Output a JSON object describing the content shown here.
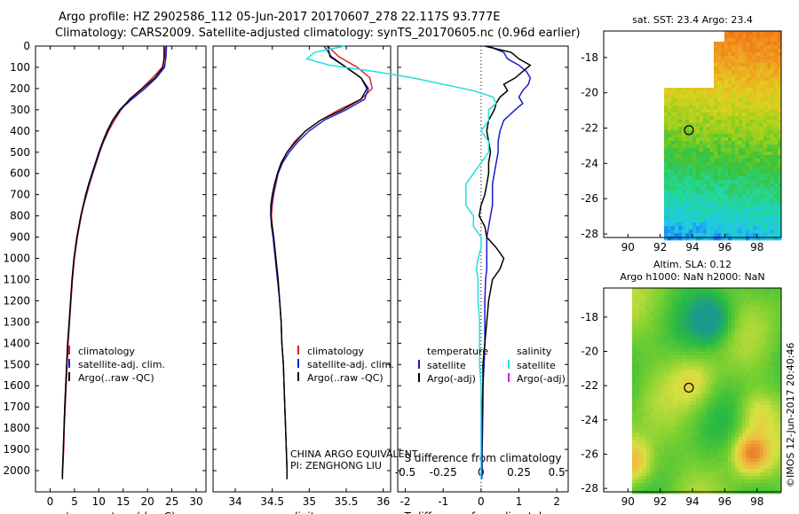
{
  "header": {
    "line1": "Argo profile: HZ 2902586_112 05-Jun-2017 20170607_278 22.117S 93.777E",
    "line2": "Climatology: CARS2009. Satellite-adjusted climatology: synTS_20170605.nc (0.96d earlier)"
  },
  "colors": {
    "climatology": "#d42020",
    "satellite": "#1a1ad0",
    "argo": "#000000",
    "salinity_satellite": "#20e0e0",
    "salinity_argo": "#d020d0"
  },
  "chart_data": [
    {
      "type": "line",
      "panel": "temperature",
      "xlabel": "temperature (deg C)",
      "ylabel": "",
      "xlim": [
        -3,
        32
      ],
      "ylim": [
        2100,
        0
      ],
      "xticks": [
        0,
        5,
        10,
        15,
        20,
        25,
        30
      ],
      "yticks": [
        0,
        100,
        200,
        300,
        400,
        500,
        600,
        700,
        800,
        900,
        1000,
        1100,
        1200,
        1300,
        1400,
        1500,
        1600,
        1700,
        1800,
        1900,
        2000
      ],
      "legend_position": "lower-left",
      "depth": [
        0,
        50,
        100,
        150,
        200,
        250,
        300,
        350,
        400,
        450,
        500,
        550,
        600,
        650,
        700,
        750,
        800,
        850,
        900,
        1000,
        1100,
        1200,
        1300,
        1400,
        1500,
        1600,
        1700,
        1800,
        1900,
        2000,
        2040
      ],
      "series": [
        {
          "name": "climatology",
          "color_key": "climatology",
          "values": [
            23.7,
            23.6,
            23.0,
            21.0,
            18.8,
            16.3,
            14.6,
            13.2,
            12.0,
            11.0,
            10.2,
            9.5,
            8.8,
            8.1,
            7.5,
            6.9,
            6.4,
            6.0,
            5.6,
            5.0,
            4.6,
            4.3,
            4.0,
            3.7,
            3.5,
            3.3,
            3.1,
            2.9,
            2.8,
            2.6,
            2.55
          ]
        },
        {
          "name": "satellite-adj. clim.",
          "color_key": "satellite",
          "values": [
            23.9,
            23.8,
            23.5,
            21.8,
            19.5,
            16.8,
            14.4,
            12.9,
            11.8,
            10.9,
            10.1,
            9.4,
            8.7,
            8.0,
            7.4,
            6.8,
            6.3,
            5.9,
            5.5,
            4.9,
            4.5,
            4.2,
            3.9,
            3.6,
            3.4,
            3.2,
            3.0,
            2.85,
            2.7,
            2.55,
            2.5
          ]
        },
        {
          "name": "Argo(..raw -QC)",
          "color_key": "argo",
          "values": [
            23.4,
            23.4,
            23.2,
            21.5,
            19.0,
            16.4,
            14.3,
            12.8,
            11.7,
            10.8,
            10.0,
            9.3,
            8.6,
            7.9,
            7.3,
            6.8,
            6.3,
            5.9,
            5.5,
            4.9,
            4.5,
            4.2,
            3.9,
            3.6,
            3.4,
            3.2,
            3.0,
            2.85,
            2.7,
            2.55,
            2.5
          ]
        }
      ]
    },
    {
      "type": "line",
      "panel": "salinity",
      "xlabel": "salinity",
      "ylabel": "",
      "xlim": [
        33.7,
        36.1
      ],
      "ylim": [
        2100,
        0
      ],
      "xticks": [
        34,
        34.5,
        35,
        35.5,
        36
      ],
      "legend_position": "lower-left",
      "depth": [
        0,
        50,
        100,
        150,
        200,
        250,
        300,
        350,
        400,
        450,
        500,
        550,
        600,
        650,
        700,
        750,
        800,
        850,
        900,
        1000,
        1100,
        1200,
        1300,
        1400,
        1500,
        1600,
        1700,
        1800,
        1900,
        2000,
        2040
      ],
      "series": [
        {
          "name": "climatology",
          "color_key": "climatology",
          "values": [
            35.25,
            35.4,
            35.65,
            35.82,
            35.85,
            35.7,
            35.4,
            35.15,
            34.95,
            34.8,
            34.7,
            34.63,
            34.58,
            34.55,
            34.52,
            34.5,
            34.49,
            34.5,
            34.52,
            34.55,
            34.58,
            34.6,
            34.62,
            34.63,
            34.65,
            34.66,
            34.67,
            34.68,
            34.69,
            34.7,
            34.7
          ]
        },
        {
          "name": "satellite-adj. clim.",
          "color_key": "satellite",
          "values": [
            35.2,
            35.3,
            35.5,
            35.7,
            35.8,
            35.75,
            35.5,
            35.2,
            35.0,
            34.85,
            34.73,
            34.64,
            34.58,
            34.54,
            34.51,
            34.49,
            34.48,
            34.49,
            34.51,
            34.54,
            34.57,
            34.6,
            34.62,
            34.63,
            34.65,
            34.66,
            34.67,
            34.68,
            34.69,
            34.7,
            34.7
          ]
        },
        {
          "name": "Argo(..raw -QC)",
          "color_key": "argo",
          "values": [
            35.25,
            35.28,
            35.5,
            35.7,
            35.78,
            35.7,
            35.45,
            35.15,
            34.95,
            34.82,
            34.7,
            34.62,
            34.57,
            34.53,
            34.5,
            34.48,
            34.48,
            34.5,
            34.52,
            34.55,
            34.58,
            34.6,
            34.62,
            34.63,
            34.65,
            34.66,
            34.67,
            34.68,
            34.69,
            34.7,
            34.7
          ]
        }
      ],
      "annotation": {
        "line1": "CHINA ARGO EQUIVALENT",
        "line2": "PI: ZENGHONG LIU"
      }
    },
    {
      "type": "line",
      "panel": "difference",
      "xlabel": "T difference from climatology",
      "xlabel_top": "S difference from climatology",
      "xlim": [
        -2.2,
        2.3
      ],
      "ylim": [
        2100,
        0
      ],
      "xticks": [
        -2,
        -1,
        0,
        1,
        2
      ],
      "xtick_labels": [
        "-2",
        "-1",
        "0",
        "1",
        "2"
      ],
      "sticks": [
        -0.5,
        -0.25,
        0,
        0.25,
        0.5
      ],
      "stick_labels": [
        "-0.5",
        "-0.25",
        "0",
        "0.25",
        "0.5"
      ],
      "legend_position": "lower-center",
      "legend_titles": {
        "temperature": "temperature",
        "salinity": "salinity"
      },
      "depth": [
        0,
        30,
        60,
        90,
        120,
        150,
        180,
        210,
        240,
        270,
        300,
        350,
        400,
        450,
        500,
        550,
        600,
        650,
        700,
        750,
        800,
        850,
        900,
        950,
        1000,
        1050,
        1100,
        1200,
        1300,
        1400,
        1500,
        1600,
        1700,
        1800,
        1900,
        2000,
        2040
      ],
      "series": [
        {
          "name": "satellite",
          "group": "temperature",
          "color_key": "satellite",
          "values": [
            0.2,
            0.6,
            0.7,
            1.0,
            1.2,
            1.3,
            1.25,
            1.1,
            1.0,
            1.1,
            0.9,
            0.6,
            0.5,
            0.45,
            0.45,
            0.4,
            0.35,
            0.3,
            0.3,
            0.3,
            0.25,
            0.2,
            0.15,
            0.15,
            0.15,
            0.15,
            0.12,
            0.1,
            0.1,
            0.1,
            0.08,
            0.05,
            0.05,
            0.04,
            0.03,
            0.03,
            0.02
          ]
        },
        {
          "name": "Argo(-adj)",
          "group": "temperature",
          "color_key": "argo",
          "values": [
            0.1,
            0.8,
            1.0,
            1.3,
            1.1,
            0.9,
            0.6,
            0.7,
            0.5,
            0.4,
            0.35,
            0.2,
            0.15,
            0.2,
            0.25,
            0.2,
            0.2,
            0.15,
            0.1,
            0.0,
            -0.05,
            0.1,
            0.15,
            0.4,
            0.6,
            0.5,
            0.3,
            0.2,
            0.15,
            0.1,
            0.05,
            0.05,
            0.03,
            0.02,
            0.02,
            0.01,
            0.01
          ]
        },
        {
          "name": "satellite",
          "group": "salinity",
          "color_key": "salinity_satellite",
          "values": [
            -0.9,
            -1.1,
            -1.15,
            -1.0,
            -0.7,
            -0.45,
            -0.25,
            -0.05,
            0.08,
            0.1,
            0.05,
            0.05,
            0.0,
            0.05,
            0.05,
            0.0,
            -0.05,
            -0.1,
            -0.1,
            -0.1,
            -0.05,
            -0.05,
            0.0,
            0.0,
            -0.02,
            -0.03,
            -0.02,
            -0.02,
            -0.01,
            -0.01,
            -0.01,
            0.0,
            0.0,
            0.0,
            0.0,
            0.0,
            0.0
          ]
        },
        {
          "name": "Argo(-adj)",
          "group": "salinity",
          "color_key": "salinity_argo",
          "values": []
        }
      ]
    },
    {
      "type": "heatmap",
      "panel": "sst_map",
      "title": "sat. SST: 23.4  Argo: 23.4",
      "xlim": [
        88.5,
        99.5
      ],
      "ylim": [
        -28.2,
        -16.5
      ],
      "xticks": [
        90,
        92,
        94,
        96,
        98
      ],
      "yticks": [
        -28,
        -26,
        -24,
        -22,
        -20,
        -18
      ],
      "marker": {
        "lon": 93.777,
        "lat": -22.117
      },
      "colorscale": [
        "#1a3cf0",
        "#1ec8ee",
        "#22d89a",
        "#3ac23a",
        "#9ad01c",
        "#e0d020",
        "#f0a020",
        "#f07818"
      ]
    },
    {
      "type": "heatmap",
      "panel": "sla_map",
      "title_line1": "Altim. SLA: 0.12",
      "title_line2": "Argo h1000: NaN h2000: NaN",
      "xlim": [
        88.5,
        99.5
      ],
      "ylim": [
        -28.2,
        -16.3
      ],
      "xticks": [
        90,
        92,
        94,
        96,
        98
      ],
      "yticks": [
        -28,
        -26,
        -24,
        -22,
        -20,
        -18
      ],
      "marker": {
        "lon": 93.777,
        "lat": -22.117
      },
      "colorscale": [
        "#1a9a8a",
        "#2abb40",
        "#7ad030",
        "#d8e040",
        "#f0b840",
        "#e88028"
      ]
    }
  ],
  "credit": "©IMOS 12-Jun-2017 20:40:46"
}
